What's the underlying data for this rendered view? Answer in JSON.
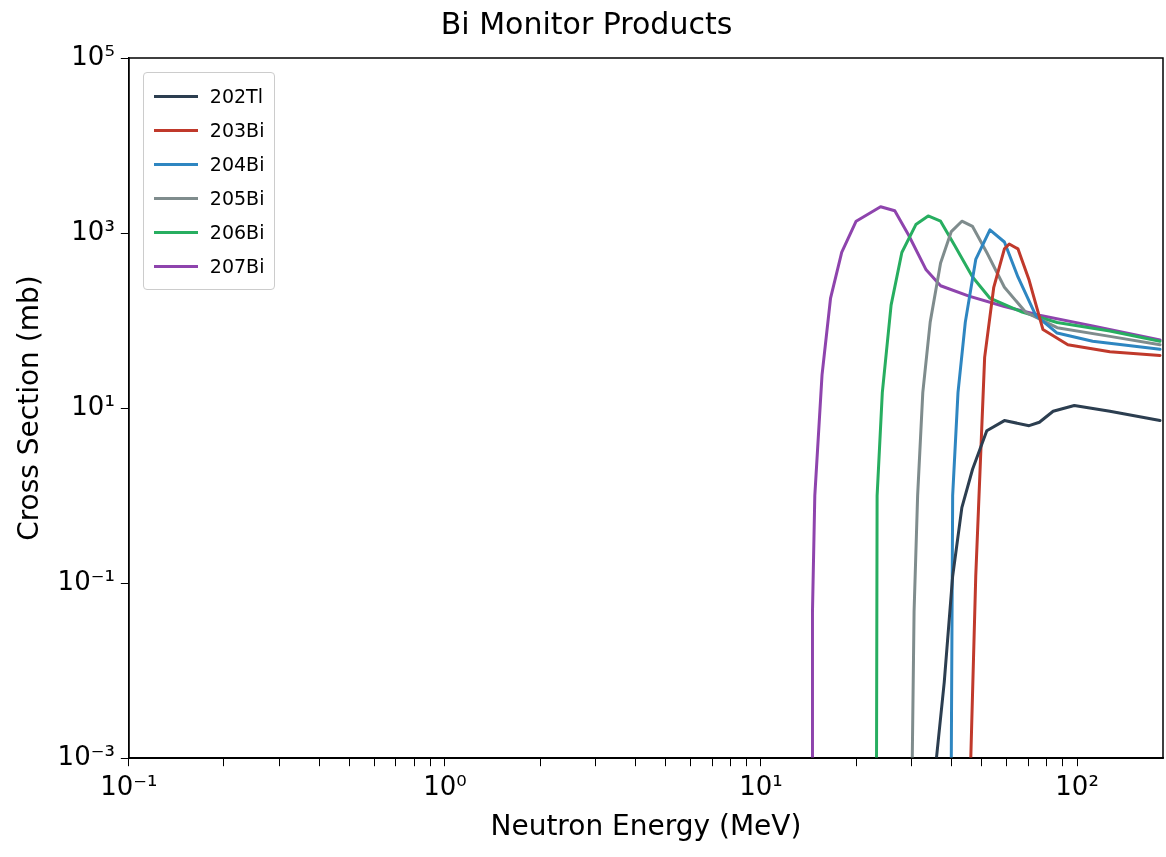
{
  "chart_data": {
    "type": "line",
    "title": "Bi Monitor Products",
    "xlabel": "Neutron Energy (MeV)",
    "ylabel": "Cross Section (mb)",
    "log": "xy",
    "legend": "top left",
    "marker": "none",
    "line_style": "solid",
    "xlim": [
      0.1,
      187
    ],
    "ylim": [
      0.001,
      100000
    ],
    "xticks": [
      {
        "value": 0.1,
        "label": "10⁻¹"
      },
      {
        "value": 0.2,
        "label": null
      },
      {
        "value": 0.3,
        "label": null
      },
      {
        "value": 0.4,
        "label": null
      },
      {
        "value": 0.5,
        "label": null
      },
      {
        "value": 0.6,
        "label": null
      },
      {
        "value": 0.7,
        "label": null
      },
      {
        "value": 0.8,
        "label": null
      },
      {
        "value": 0.9,
        "label": null
      },
      {
        "value": 1,
        "label": "10⁰"
      },
      {
        "value": 2,
        "label": null
      },
      {
        "value": 3,
        "label": null
      },
      {
        "value": 4,
        "label": null
      },
      {
        "value": 5,
        "label": null
      },
      {
        "value": 6,
        "label": null
      },
      {
        "value": 7,
        "label": null
      },
      {
        "value": 8,
        "label": null
      },
      {
        "value": 9,
        "label": null
      },
      {
        "value": 10,
        "label": "10¹"
      },
      {
        "value": 20,
        "label": null
      },
      {
        "value": 30,
        "label": null
      },
      {
        "value": 40,
        "label": null
      },
      {
        "value": 50,
        "label": null
      },
      {
        "value": 60,
        "label": null
      },
      {
        "value": 70,
        "label": null
      },
      {
        "value": 80,
        "label": null
      },
      {
        "value": 90,
        "label": null
      },
      {
        "value": 100,
        "label": "10²"
      }
    ],
    "yticks": [
      {
        "value": 0.001,
        "label": "10⁻³"
      },
      {
        "value": 0.1,
        "label": "10⁻¹"
      },
      {
        "value": 10,
        "label": "10¹"
      },
      {
        "value": 1000,
        "label": "10³"
      },
      {
        "value": 100000,
        "label": "10⁵"
      }
    ],
    "series": [
      {
        "name": "202Tl",
        "color": "#2c3e50",
        "x": [
          35.9,
          38,
          40.4,
          43.2,
          46.7,
          51.8,
          58.9,
          70.5,
          76,
          84,
          98,
          127,
          183
        ],
        "values": [
          0.001,
          0.0074,
          0.12,
          0.73,
          2.0,
          5.5,
          7.2,
          6.3,
          6.9,
          9.2,
          10.7,
          9.2,
          7.2
        ]
      },
      {
        "name": "203Bi",
        "color": "#c0392b",
        "x": [
          46.1,
          47.8,
          49.8,
          51,
          54.5,
          58.9,
          61,
          65,
          70.5,
          78,
          93.5,
          127,
          183
        ],
        "values": [
          0.001,
          0.12,
          4.6,
          38,
          240,
          660,
          750,
          660,
          290,
          79,
          53,
          44,
          40
        ]
      },
      {
        "name": "204Bi",
        "color": "#2e86c1",
        "x": [
          40,
          40.4,
          42,
          44.3,
          47.8,
          53,
          58.9,
          65,
          74,
          86.5,
          112,
          183
        ],
        "values": [
          0.001,
          1,
          15,
          96,
          500,
          1090,
          790,
          315,
          115,
          72,
          58,
          47
        ]
      },
      {
        "name": "205Bi",
        "color": "#7f8c8d",
        "x": [
          30.1,
          30.5,
          31.3,
          32.5,
          34.3,
          37,
          40,
          43.2,
          46.7,
          51.8,
          58.9,
          68.7,
          86.5,
          127,
          183
        ],
        "values": [
          0.001,
          0.047,
          1,
          15,
          96,
          455,
          1040,
          1365,
          1190,
          600,
          240,
          125,
          83,
          66,
          53
        ]
      },
      {
        "name": "206Bi",
        "color": "#27ae60",
        "x": [
          23.2,
          23.3,
          24.2,
          25.8,
          27.9,
          30.9,
          33.8,
          37,
          41,
          46.7,
          53,
          67,
          86.5,
          127,
          183
        ],
        "values": [
          0.001,
          1,
          15,
          150,
          600,
          1250,
          1570,
          1365,
          720,
          315,
          180,
          125,
          95,
          76,
          58
        ]
      },
      {
        "name": "207Bi",
        "color": "#8e44ad",
        "x": [
          14.6,
          14.55,
          14.8,
          15.6,
          16.6,
          18,
          20,
          23.9,
          26.5,
          29.3,
          33.3,
          37,
          45.5,
          58.9,
          76,
          112,
          183
        ],
        "values": [
          0.001,
          0.047,
          1,
          24,
          181,
          600,
          1365,
          2000,
          1800,
          950,
          380,
          250,
          190,
          145,
          115,
          87,
          60
        ]
      }
    ]
  }
}
